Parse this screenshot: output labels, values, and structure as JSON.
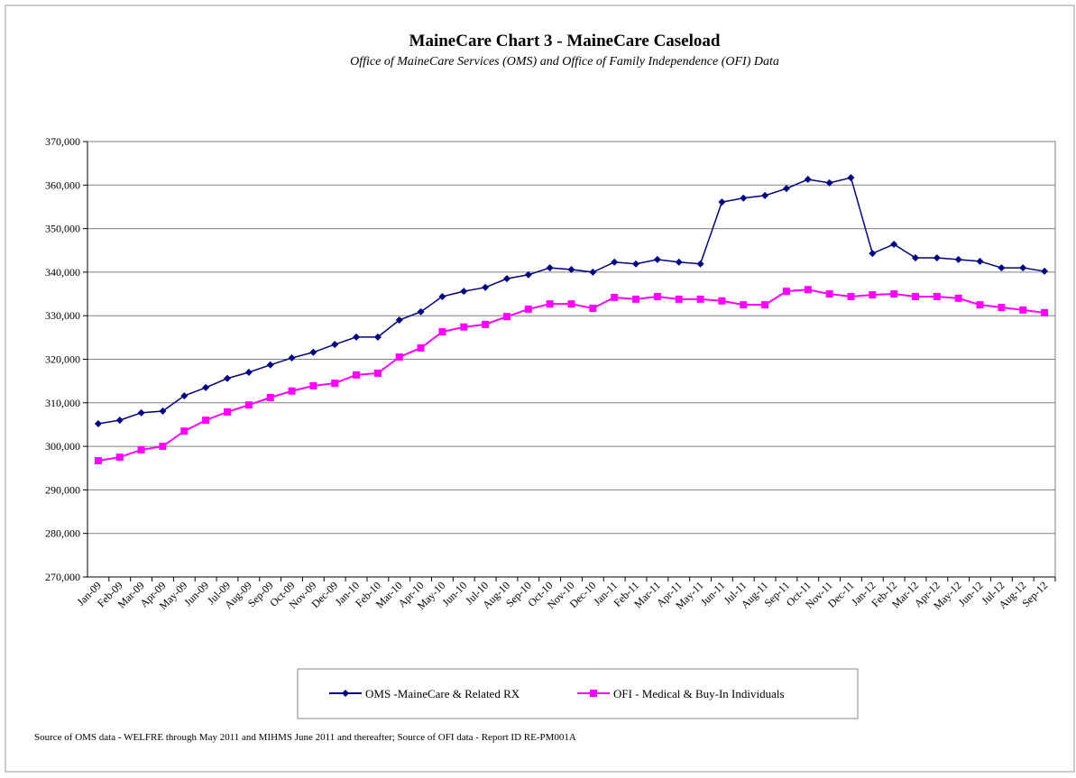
{
  "chart_data": {
    "type": "line",
    "title": "MaineCare Chart 3 - MaineCare Caseload",
    "subtitle": "Office of MaineCare Services (OMS) and Office of Family Independence (OFI) Data",
    "source": "Source of OMS data - WELFRE through May 2011 and MIHMS June 2011 and thereafter;  Source of  OFI data - Report ID RE-PM001A",
    "categories": [
      "Jan-09",
      "Feb-09",
      "Mar-09",
      "Apr-09",
      "May-09",
      "Jun-09",
      "Jul-09",
      "Aug-09",
      "Sep-09",
      "Oct-09",
      "Nov-09",
      "Dec-09",
      "Jan-10",
      "Feb-10",
      "Mar-10",
      "Apr-10",
      "May-10",
      "Jun-10",
      "Jul-10",
      "Aug-10",
      "Sep-10",
      "Oct-10",
      "Nov-10",
      "Dec-10",
      "Jan-11",
      "Feb-11",
      "Mar-11",
      "Apr-11",
      "May-11",
      "Jun-11",
      "Jul-11",
      "Aug-11",
      "Sep-11",
      "Oct-11",
      "Nov-11",
      "Dec-11",
      "Jan-12",
      "Feb-12",
      "Mar-12",
      "Apr-12",
      "May-12",
      "Jun-12",
      "Jul-12",
      "Aug-12",
      "Sep-12"
    ],
    "series": [
      {
        "name": "OMS  -MaineCare & Related RX",
        "color": "#000080",
        "marker": "diamond",
        "values": [
          305200,
          306000,
          307700,
          308100,
          311600,
          313500,
          315600,
          317000,
          318700,
          320300,
          321600,
          323400,
          325100,
          325100,
          329000,
          330900,
          334400,
          335600,
          336500,
          338500,
          339400,
          341000,
          340600,
          340000,
          342300,
          341900,
          342900,
          342300,
          341900,
          356100,
          357000,
          357600,
          359200,
          361300,
          360500,
          361700,
          344300,
          346400,
          343300,
          343300,
          342900,
          342500,
          341000,
          341000,
          340200
        ]
      },
      {
        "name": "OFI - Medical & Buy-In Individuals",
        "color": "#ff00ff",
        "marker": "square",
        "values": [
          296700,
          297500,
          299200,
          300000,
          303500,
          306000,
          307900,
          309500,
          311200,
          312700,
          313900,
          314500,
          316400,
          316800,
          320500,
          322600,
          326300,
          327400,
          328000,
          329800,
          331500,
          332700,
          332700,
          331700,
          334200,
          333800,
          334400,
          333800,
          333800,
          333400,
          332500,
          332500,
          335600,
          336000,
          335000,
          334400,
          334800,
          335000,
          334400,
          334400,
          334000,
          332500,
          331900,
          331300,
          330700
        ]
      }
    ],
    "ylim": [
      270000,
      370000
    ],
    "yticks": [
      {
        "value": 270000,
        "label": "270,000"
      },
      {
        "value": 280000,
        "label": "280,000"
      },
      {
        "value": 290000,
        "label": "290,000"
      },
      {
        "value": 300000,
        "label": "300,000"
      },
      {
        "value": 310000,
        "label": "310,000"
      },
      {
        "value": 320000,
        "label": "320,000"
      },
      {
        "value": 330000,
        "label": "330,000"
      },
      {
        "value": 340000,
        "label": "340,000"
      },
      {
        "value": 350000,
        "label": "350,000"
      },
      {
        "value": 360000,
        "label": "360,000"
      },
      {
        "value": 370000,
        "label": "370,000"
      }
    ],
    "grid": true
  }
}
